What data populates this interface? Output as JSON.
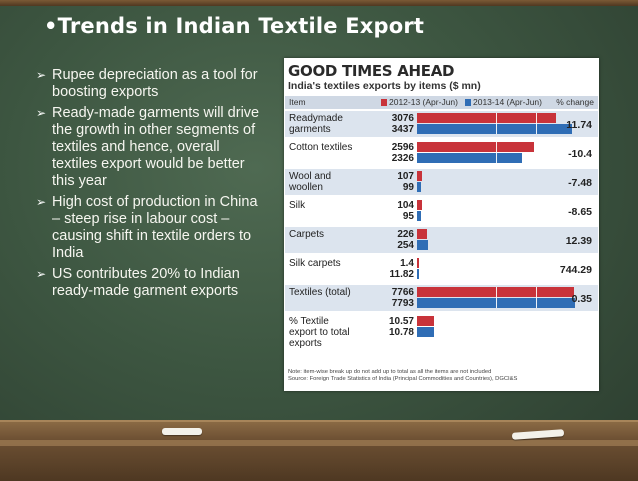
{
  "slide": {
    "title": "•Trends in Indian Textile Export",
    "bullets": [
      "Rupee depreciation as a tool for boosting exports",
      "Ready-made garments will drive the growth in other segments of textiles and hence, overall textiles export would be better this year",
      "High cost of production in China – steep rise in labour cost – causing shift in textile orders to India",
      "US contributes 20% to Indian ready-made garment exports"
    ],
    "bullet_icon": "arrow-bullet-icon"
  },
  "figure": {
    "title": "GOOD TIMES AHEAD",
    "subtitle": "India's textiles exports by items ($ mn)",
    "header_item": "Item",
    "header_pct": "% change",
    "note": "Note: item-wise break up do not add up to total as all the items are not included",
    "source": "Source: Foreign Trade Statistics of India (Principal Commodities and Countries), DGCI&S"
  },
  "chart_data": {
    "type": "bar",
    "orientation": "horizontal",
    "title": "GOOD TIMES AHEAD",
    "subtitle": "India's textiles exports by items ($ mn)",
    "categories": [
      "Readymade garments",
      "Cotton textiles",
      "Wool and woollen",
      "Silk",
      "Carpets",
      "Silk carpets",
      "Textiles (total)",
      "% Textile export to total exports"
    ],
    "series": [
      {
        "name": "2012-13 (Apr-Jun)",
        "color": "#c8333a",
        "values": [
          3076,
          2596,
          107,
          104,
          226,
          1.4,
          7766,
          10.57
        ],
        "labels": [
          "3076",
          "2596",
          "107",
          "104",
          "226",
          "1.4",
          "7766",
          "10.57"
        ]
      },
      {
        "name": "2013-14 (Apr-Jun)",
        "color": "#2f6db5",
        "values": [
          3437,
          2326,
          99,
          95,
          254,
          11.82,
          7793,
          10.78
        ],
        "labels": [
          "3437",
          "2326",
          "99",
          "95",
          "254",
          "11.82",
          "7793",
          "10.78"
        ]
      }
    ],
    "pct_change": [
      "11.74",
      "-10.4",
      "-7.48",
      "-8.65",
      "12.39",
      "744.29",
      "0.35",
      ""
    ],
    "bar_scales": [
      3500,
      3500,
      3500,
      3500,
      3500,
      3500,
      7800,
      100
    ],
    "legend": "top"
  }
}
